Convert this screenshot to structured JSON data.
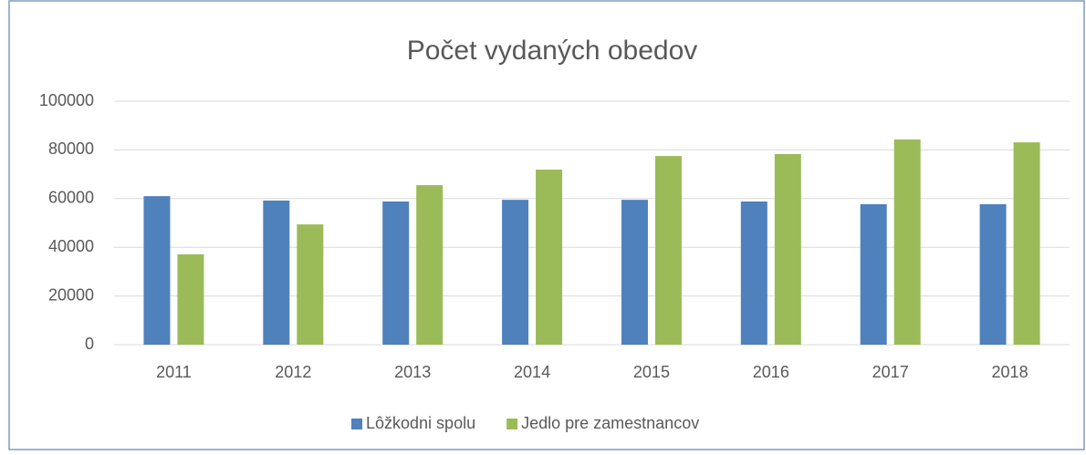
{
  "chart_data": {
    "type": "bar",
    "title": "Počet vydaných obedov",
    "categories": [
      "2011",
      "2012",
      "2013",
      "2014",
      "2015",
      "2016",
      "2017",
      "2018"
    ],
    "series": [
      {
        "name": "Lôžkodni spolu",
        "color": "#4f81bd",
        "values": [
          61000,
          59200,
          58800,
          59500,
          59500,
          58800,
          57700,
          57700
        ]
      },
      {
        "name": "Jedlo pre zamestnancov",
        "color": "#9bbb59",
        "values": [
          37100,
          49400,
          65500,
          71900,
          77500,
          78300,
          84300,
          83100
        ]
      }
    ],
    "ylim": [
      0,
      100000
    ],
    "yticks": [
      0,
      20000,
      40000,
      60000,
      80000,
      100000
    ],
    "grid": true,
    "legend": "bottom"
  }
}
